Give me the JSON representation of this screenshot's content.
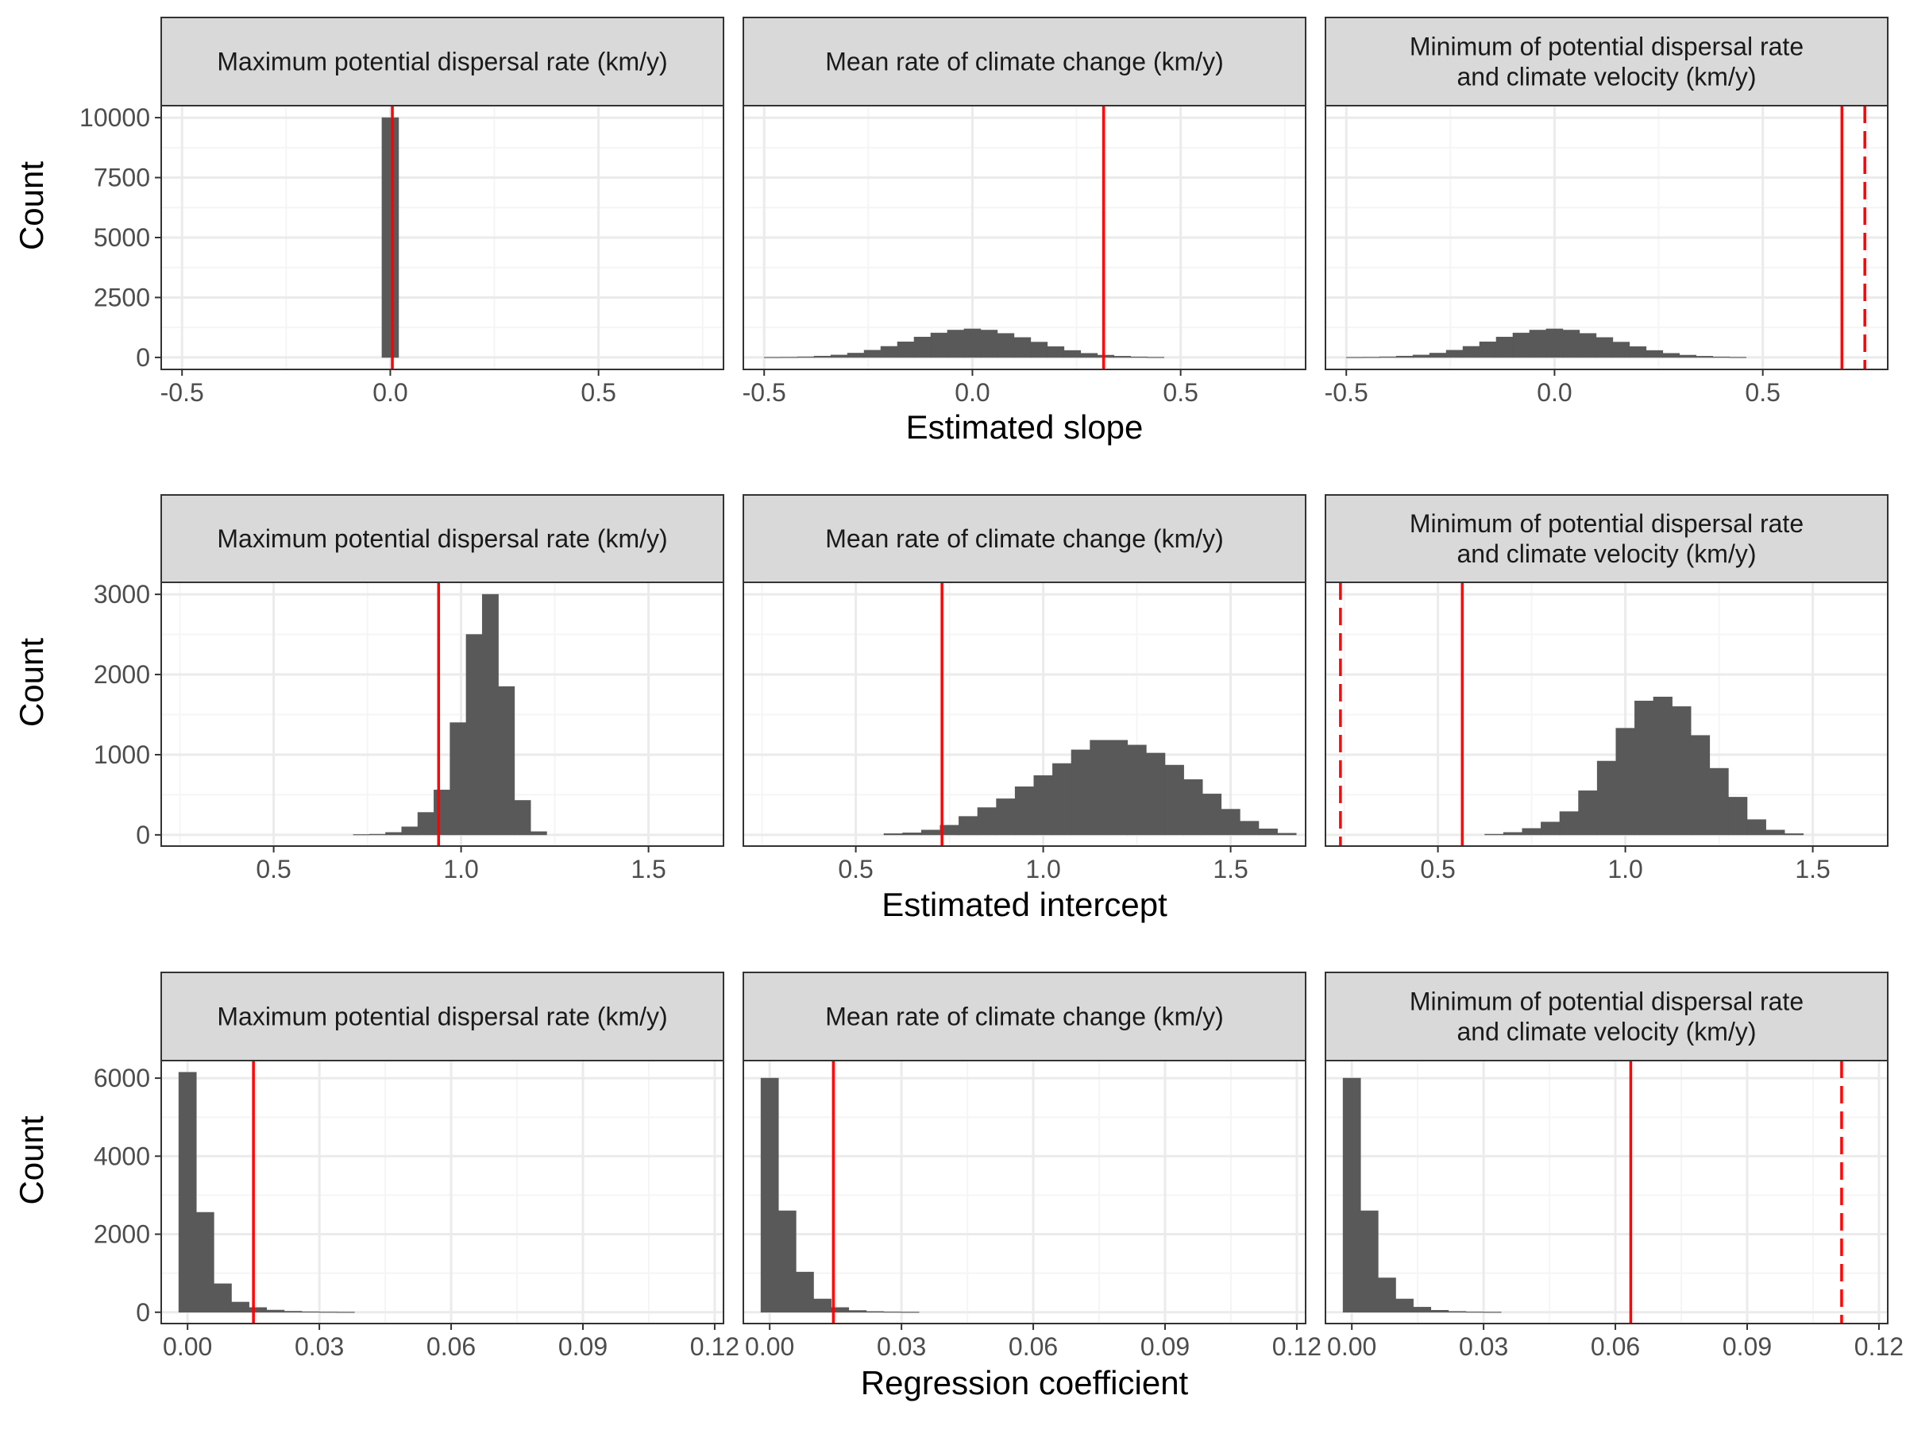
{
  "colors": {
    "bar": "#595959",
    "reference_line": "#ff0000",
    "strip_fill": "#d9d9d9",
    "panel_border": "#333333",
    "grid_major": "#ebebeb",
    "grid_minor": "#f5f5f5"
  },
  "chart_data": [
    {
      "type": "bar",
      "xlabel": "Estimated slope",
      "ylabel": "Count",
      "xlim": [
        -0.55,
        0.8
      ],
      "ylim": [
        -500,
        10500
      ],
      "xticks": [
        -0.5,
        0.0,
        0.5
      ],
      "xtick_labels": [
        "-0.5",
        "0.0",
        "0.5"
      ],
      "yticks": [
        0,
        2500,
        5000,
        7500,
        10000
      ],
      "ytick_labels": [
        "0",
        "2500",
        "5000",
        "7500",
        "10000"
      ],
      "grid": true,
      "panels": [
        {
          "strip": [
            "Maximum potential dispersal rate (km/y)"
          ],
          "bin_width": 0.04,
          "bins": [
            [
              0.0,
              10000
            ]
          ],
          "solid_line": 0.005,
          "dashed_line": null
        },
        {
          "strip": [
            "Mean rate of climate change (km/y)"
          ],
          "bin_width": 0.04,
          "bins": [
            [
              -0.48,
              5
            ],
            [
              -0.44,
              10
            ],
            [
              -0.4,
              25
            ],
            [
              -0.36,
              55
            ],
            [
              -0.32,
              100
            ],
            [
              -0.28,
              180
            ],
            [
              -0.24,
              300
            ],
            [
              -0.2,
              460
            ],
            [
              -0.16,
              650
            ],
            [
              -0.12,
              850
            ],
            [
              -0.08,
              1020
            ],
            [
              -0.04,
              1140
            ],
            [
              0.0,
              1190
            ],
            [
              0.04,
              1140
            ],
            [
              0.08,
              1000
            ],
            [
              0.12,
              830
            ],
            [
              0.16,
              640
            ],
            [
              0.2,
              450
            ],
            [
              0.24,
              290
            ],
            [
              0.28,
              170
            ],
            [
              0.32,
              95
            ],
            [
              0.36,
              50
            ],
            [
              0.4,
              22
            ],
            [
              0.44,
              8
            ]
          ],
          "solid_line": 0.315,
          "dashed_line": null
        },
        {
          "strip": [
            "Minimum of potential dispersal rate",
            "and climate velocity (km/y)"
          ],
          "bin_width": 0.04,
          "bins": [
            [
              -0.48,
              5
            ],
            [
              -0.44,
              10
            ],
            [
              -0.4,
              25
            ],
            [
              -0.36,
              55
            ],
            [
              -0.32,
              100
            ],
            [
              -0.28,
              180
            ],
            [
              -0.24,
              300
            ],
            [
              -0.2,
              460
            ],
            [
              -0.16,
              650
            ],
            [
              -0.12,
              850
            ],
            [
              -0.08,
              1020
            ],
            [
              -0.04,
              1140
            ],
            [
              0.0,
              1190
            ],
            [
              0.04,
              1140
            ],
            [
              0.08,
              1000
            ],
            [
              0.12,
              830
            ],
            [
              0.16,
              640
            ],
            [
              0.2,
              450
            ],
            [
              0.24,
              290
            ],
            [
              0.28,
              170
            ],
            [
              0.32,
              95
            ],
            [
              0.36,
              50
            ],
            [
              0.4,
              22
            ],
            [
              0.44,
              8
            ]
          ],
          "solid_line": 0.69,
          "dashed_line": 0.745
        }
      ]
    },
    {
      "type": "bar",
      "xlabel": "Estimated intercept",
      "ylabel": "Count",
      "xlim": [
        0.2,
        1.7
      ],
      "ylim": [
        -140,
        3150
      ],
      "xticks": [
        0.5,
        1.0,
        1.5
      ],
      "xtick_labels": [
        "0.5",
        "1.0",
        "1.5"
      ],
      "yticks": [
        0,
        1000,
        2000,
        3000
      ],
      "ytick_labels": [
        "0",
        "1000",
        "2000",
        "3000"
      ],
      "grid": true,
      "panels": [
        {
          "strip": [
            "Maximum potential dispersal rate (km/y)"
          ],
          "bin_width": 0.043,
          "bins": [
            [
              0.734,
              4
            ],
            [
              0.777,
              8
            ],
            [
              0.82,
              30
            ],
            [
              0.863,
              100
            ],
            [
              0.906,
              280
            ],
            [
              0.949,
              560
            ],
            [
              0.992,
              1400
            ],
            [
              1.035,
              2500
            ],
            [
              1.078,
              3000
            ],
            [
              1.121,
              1850
            ],
            [
              1.164,
              430
            ],
            [
              1.207,
              40
            ]
          ],
          "solid_line": 0.94,
          "dashed_line": null
        },
        {
          "strip": [
            "Mean rate of climate change (km/y)"
          ],
          "bin_width": 0.05,
          "bins": [
            [
              0.6,
              15
            ],
            [
              0.65,
              25
            ],
            [
              0.7,
              60
            ],
            [
              0.75,
              120
            ],
            [
              0.8,
              230
            ],
            [
              0.85,
              340
            ],
            [
              0.9,
              450
            ],
            [
              0.95,
              600
            ],
            [
              1.0,
              740
            ],
            [
              1.05,
              890
            ],
            [
              1.1,
              1060
            ],
            [
              1.15,
              1180
            ],
            [
              1.2,
              1180
            ],
            [
              1.25,
              1120
            ],
            [
              1.3,
              1020
            ],
            [
              1.35,
              870
            ],
            [
              1.4,
              690
            ],
            [
              1.45,
              510
            ],
            [
              1.5,
              320
            ],
            [
              1.55,
              170
            ],
            [
              1.6,
              75
            ],
            [
              1.65,
              20
            ]
          ],
          "solid_line": 0.73,
          "dashed_line": null
        },
        {
          "strip": [
            "Minimum of potential dispersal rate",
            "and climate velocity (km/y)"
          ],
          "bin_width": 0.05,
          "bins": [
            [
              0.65,
              8
            ],
            [
              0.7,
              30
            ],
            [
              0.75,
              80
            ],
            [
              0.8,
              160
            ],
            [
              0.85,
              290
            ],
            [
              0.9,
              550
            ],
            [
              0.95,
              920
            ],
            [
              1.0,
              1330
            ],
            [
              1.05,
              1670
            ],
            [
              1.1,
              1720
            ],
            [
              1.15,
              1600
            ],
            [
              1.2,
              1240
            ],
            [
              1.25,
              830
            ],
            [
              1.3,
              470
            ],
            [
              1.35,
              190
            ],
            [
              1.4,
              60
            ],
            [
              1.45,
              15
            ]
          ],
          "solid_line": 0.565,
          "dashed_line": 0.24
        }
      ]
    },
    {
      "type": "bar",
      "xlabel": "Regression coefficient",
      "ylabel": "Count",
      "xlim": [
        -0.006,
        0.122
      ],
      "ylim": [
        -290,
        6450
      ],
      "xticks": [
        0.0,
        0.03,
        0.06,
        0.09,
        0.12
      ],
      "xtick_labels": [
        "0.00",
        "0.03",
        "0.06",
        "0.09",
        "0.12"
      ],
      "yticks": [
        0,
        2000,
        4000,
        6000
      ],
      "ytick_labels": [
        "0",
        "2000",
        "4000",
        "6000"
      ],
      "grid": true,
      "panels": [
        {
          "strip": [
            "Maximum potential dispersal rate (km/y)"
          ],
          "bin_width": 0.004,
          "bins": [
            [
              0.0,
              6150
            ],
            [
              0.004,
              2560
            ],
            [
              0.008,
              730
            ],
            [
              0.012,
              260
            ],
            [
              0.016,
              120
            ],
            [
              0.02,
              55
            ],
            [
              0.024,
              25
            ],
            [
              0.028,
              12
            ],
            [
              0.032,
              6
            ],
            [
              0.036,
              3
            ]
          ],
          "solid_line": 0.015,
          "dashed_line": null
        },
        {
          "strip": [
            "Mean rate of climate change (km/y)"
          ],
          "bin_width": 0.004,
          "bins": [
            [
              0.0,
              6000
            ],
            [
              0.004,
              2600
            ],
            [
              0.008,
              1030
            ],
            [
              0.012,
              340
            ],
            [
              0.016,
              120
            ],
            [
              0.02,
              45
            ],
            [
              0.024,
              18
            ],
            [
              0.028,
              8
            ],
            [
              0.032,
              4
            ]
          ],
          "solid_line": 0.0145,
          "dashed_line": null
        },
        {
          "strip": [
            "Minimum of potential dispersal rate",
            "and climate velocity (km/y)"
          ],
          "bin_width": 0.004,
          "bins": [
            [
              0.0,
              6000
            ],
            [
              0.004,
              2600
            ],
            [
              0.008,
              880
            ],
            [
              0.012,
              340
            ],
            [
              0.016,
              130
            ],
            [
              0.02,
              50
            ],
            [
              0.024,
              20
            ],
            [
              0.028,
              8
            ],
            [
              0.032,
              4
            ]
          ],
          "solid_line": 0.0635,
          "dashed_line": 0.1115
        }
      ]
    }
  ]
}
